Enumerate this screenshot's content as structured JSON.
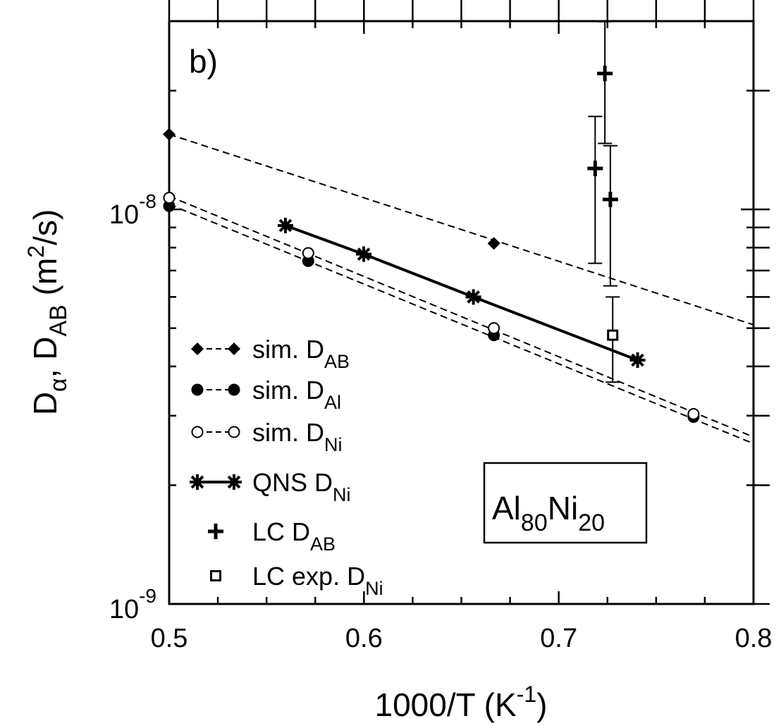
{
  "chart_data": {
    "type": "scatter",
    "panel_label": "b)",
    "inset_label": {
      "base1": "Al",
      "sub1": "80",
      "base2": "Ni",
      "sub2": "20"
    },
    "xlabel": {
      "base": "1000/T (K",
      "sup": "-1",
      "tail": ")"
    },
    "ylabel": {
      "p1": "D",
      "sub1": "α",
      "p2": ", D",
      "sub2": "AB",
      "p3": " (m",
      "sup": "2",
      "p4": "/s)"
    },
    "xlim": [
      0.5,
      0.8
    ],
    "ylim": [
      1e-09,
      3e-08
    ],
    "yscale": "log",
    "x_ticks": [
      0.5,
      0.6,
      0.7,
      0.8
    ],
    "x_tick_labels": [
      "0.5",
      "0.6",
      "0.7",
      "0.8"
    ],
    "y_major_ticks": [
      {
        "value": 1e-09,
        "base": "10",
        "exp": "-9"
      },
      {
        "value": 1e-08,
        "base": "10",
        "exp": "-8"
      }
    ],
    "grid": false,
    "legend_position": "left",
    "series": [
      {
        "name": "sim. D",
        "name_sub": "AB",
        "marker": "diamond",
        "line": "dashed",
        "points": [
          [
            0.5,
            1.55e-08
          ],
          [
            0.6667,
            8.2e-09
          ]
        ],
        "fit": [
          [
            0.5,
            1.55e-08
          ],
          [
            0.8,
            5.1e-09
          ]
        ]
      },
      {
        "name": "sim. D",
        "name_sub": "Al",
        "marker": "filled-circle",
        "line": "dashed",
        "points": [
          [
            0.5,
            1.02e-08
          ],
          [
            0.5714,
            7.4e-09
          ],
          [
            0.6667,
            4.8e-09
          ],
          [
            0.7692,
            2.98e-09
          ]
        ],
        "fit": [
          [
            0.5,
            1.03e-08
          ],
          [
            0.8,
            2.55e-09
          ]
        ]
      },
      {
        "name": "sim. D",
        "name_sub": "Ni",
        "marker": "open-circle",
        "line": "dashed",
        "points": [
          [
            0.5,
            1.07e-08
          ],
          [
            0.5714,
            7.75e-09
          ],
          [
            0.6667,
            5e-09
          ],
          [
            0.7692,
            3.03e-09
          ]
        ],
        "fit": [
          [
            0.5,
            1.08e-08
          ],
          [
            0.8,
            2.65e-09
          ]
        ]
      },
      {
        "name": "QNS D",
        "name_sub": "Ni",
        "marker": "asterisk",
        "line": "solid",
        "points": [
          [
            0.5597,
            9.1e-09
          ],
          [
            0.5999,
            7.7e-09
          ],
          [
            0.6562,
            6e-09
          ],
          [
            0.7405,
            4.15e-09
          ]
        ]
      },
      {
        "name": "LC D",
        "name_sub": "AB",
        "marker": "plus",
        "line": "none",
        "points": [
          {
            "x": 0.7187,
            "y": 1.27e-08,
            "ylo": 7.3e-09,
            "yhi": 1.72e-08
          },
          {
            "x": 0.7237,
            "y": 2.21e-08,
            "ylo": 1.47e-08,
            "yhi": 2.99e-08
          },
          {
            "x": 0.7265,
            "y": 1.06e-08,
            "ylo": 6.4e-09,
            "yhi": 1.45e-08
          }
        ]
      },
      {
        "name": "LC exp. D",
        "name_sub": "Ni",
        "marker": "open-square",
        "line": "none",
        "points": [
          {
            "x": 0.7277,
            "y": 4.8e-09,
            "ylo": 3.65e-09,
            "yhi": 6e-09
          }
        ]
      }
    ]
  }
}
